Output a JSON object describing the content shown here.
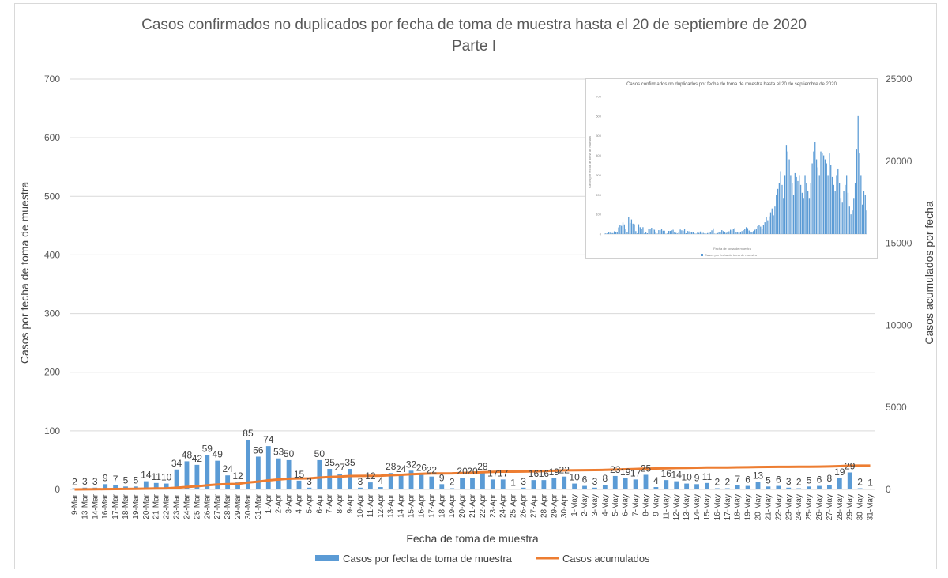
{
  "chart_data": {
    "type": "bar",
    "title": "Casos confirmados no duplicados por fecha de toma de muestra hasta el 20 de septiembre de 2020",
    "subtitle": "Parte I",
    "xlabel": "Fecha de toma de muestra",
    "ylabel": "Casos por fecha de toma de muestra",
    "y2label": "Casos acumulados por fecha",
    "ylim": [
      0,
      700
    ],
    "yticks": [
      0,
      100,
      200,
      300,
      400,
      500,
      600,
      700
    ],
    "y2lim": [
      0,
      25000
    ],
    "y2ticks": [
      0,
      5000,
      10000,
      15000,
      20000,
      25000
    ],
    "grid": true,
    "legend_position": "bottom",
    "colors": {
      "bars": "#5b9bd5",
      "line": "#ed7d31"
    },
    "categories": [
      "9-Mar",
      "13-Mar",
      "14-Mar",
      "16-Mar",
      "17-Mar",
      "18-Mar",
      "19-Mar",
      "20-Mar",
      "21-Mar",
      "22-Mar",
      "23-Mar",
      "24-Mar",
      "25-Mar",
      "26-Mar",
      "27-Mar",
      "28-Mar",
      "29-Mar",
      "30-Mar",
      "31-Mar",
      "1-Apr",
      "2-Apr",
      "3-Apr",
      "4-Apr",
      "5-Apr",
      "6-Apr",
      "7-Apr",
      "8-Apr",
      "9-Apr",
      "10-Apr",
      "11-Apr",
      "12-Apr",
      "13-Apr",
      "14-Apr",
      "15-Apr",
      "16-Apr",
      "17-Apr",
      "18-Apr",
      "19-Apr",
      "20-Apr",
      "21-Apr",
      "22-Apr",
      "23-Apr",
      "24-Apr",
      "25-Apr",
      "26-Apr",
      "27-Apr",
      "28-Apr",
      "29-Apr",
      "30-Apr",
      "1-May",
      "2-May",
      "3-May",
      "4-May",
      "5-May",
      "6-May",
      "7-May",
      "8-May",
      "9-May",
      "11-May",
      "12-May",
      "13-May",
      "14-May",
      "15-May",
      "16-May",
      "17-May",
      "18-May",
      "19-May",
      "20-May",
      "21-May",
      "22-May",
      "23-May",
      "24-May",
      "25-May",
      "26-May",
      "27-May",
      "28-May",
      "29-May",
      "30-May",
      "31-May"
    ],
    "series": [
      {
        "name": "Casos por fecha de toma de muestra",
        "axis": "left",
        "values": [
          2,
          3,
          3,
          9,
          7,
          5,
          5,
          14,
          11,
          10,
          34,
          48,
          42,
          59,
          49,
          24,
          12,
          85,
          56,
          74,
          53,
          50,
          15,
          3,
          50,
          35,
          27,
          35,
          3,
          12,
          4,
          28,
          24,
          32,
          26,
          22,
          9,
          2,
          20,
          20,
          28,
          17,
          17,
          1,
          3,
          16,
          16,
          19,
          22,
          10,
          6,
          3,
          8,
          23,
          19,
          17,
          25,
          4,
          16,
          14,
          10,
          9,
          11,
          2,
          2,
          7,
          6,
          13,
          5,
          6,
          3,
          2,
          5,
          6,
          8,
          19,
          29,
          2,
          1
        ]
      },
      {
        "name": "Casos acumulados",
        "axis": "right",
        "values": [
          2,
          5,
          8,
          17,
          24,
          29,
          34,
          48,
          59,
          69,
          103,
          151,
          193,
          252,
          301,
          325,
          337,
          422,
          478,
          552,
          605,
          655,
          670,
          673,
          723,
          758,
          785,
          820,
          823,
          835,
          839,
          867,
          891,
          923,
          949,
          971,
          980,
          982,
          1002,
          1022,
          1050,
          1067,
          1084,
          1085,
          1088,
          1104,
          1120,
          1139,
          1161,
          1171,
          1177,
          1180,
          1188,
          1211,
          1230,
          1247,
          1272,
          1276,
          1292,
          1306,
          1316,
          1325,
          1336,
          1338,
          1340,
          1347,
          1353,
          1366,
          1371,
          1377,
          1380,
          1382,
          1387,
          1393,
          1401,
          1420,
          1449,
          1451,
          1452
        ]
      }
    ],
    "inset": {
      "title": "Casos confirmados no duplicados por fecha de toma de muestra hasta el 20 de septiembre de 2020",
      "ylabel": "Casos por fecha de toma de muestra",
      "xlabel": "Fecha de toma de muestra",
      "legend": "Casos por fecha de toma de muestra",
      "ylim": [
        0,
        700
      ],
      "yticks": [
        0,
        100,
        200,
        300,
        400,
        500,
        600,
        700
      ],
      "values": [
        2,
        3,
        3,
        9,
        7,
        5,
        5,
        14,
        11,
        10,
        34,
        48,
        42,
        59,
        49,
        24,
        12,
        85,
        56,
        74,
        53,
        50,
        15,
        3,
        50,
        35,
        27,
        35,
        3,
        12,
        4,
        28,
        24,
        32,
        26,
        22,
        9,
        2,
        20,
        20,
        28,
        17,
        17,
        1,
        3,
        16,
        16,
        19,
        22,
        10,
        6,
        3,
        8,
        23,
        19,
        17,
        25,
        4,
        16,
        14,
        10,
        9,
        11,
        2,
        2,
        7,
        6,
        13,
        5,
        6,
        3,
        2,
        5,
        6,
        8,
        19,
        29,
        2,
        1,
        5,
        8,
        12,
        20,
        15,
        10,
        6,
        9,
        14,
        22,
        18,
        25,
        30,
        12,
        8,
        6,
        10,
        15,
        20,
        26,
        35,
        30,
        18,
        12,
        9,
        15,
        22,
        28,
        40,
        45,
        38,
        25,
        48,
        60,
        85,
        70,
        90,
        110,
        130,
        95,
        140,
        200,
        230,
        260,
        320,
        250,
        180,
        300,
        450,
        420,
        380,
        300,
        260,
        200,
        310,
        290,
        270,
        300,
        250,
        210,
        180,
        300,
        260,
        220,
        180,
        260,
        360,
        420,
        470,
        380,
        340,
        300,
        420,
        410,
        400,
        380,
        360,
        300,
        410,
        350,
        290,
        250,
        220,
        300,
        330,
        260,
        180,
        160,
        220,
        250,
        300,
        210,
        140,
        100,
        120,
        180,
        260,
        430,
        600,
        410,
        300,
        150,
        220,
        200,
        120
      ]
    }
  }
}
